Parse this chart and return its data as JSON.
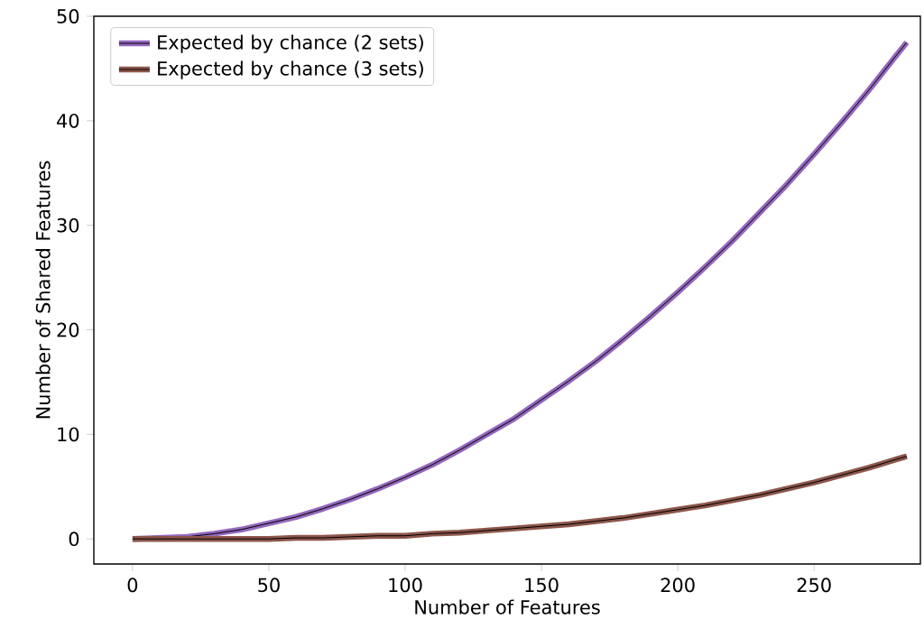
{
  "chart_data": {
    "type": "line",
    "xlabel": "Number of Features",
    "ylabel": "Number of Shared Features",
    "xlim": [
      -14.2,
      289
    ],
    "ylim": [
      -2.4,
      50
    ],
    "xticks": [
      0,
      50,
      100,
      150,
      200,
      250
    ],
    "yticks": [
      0,
      10,
      20,
      30,
      40,
      50
    ],
    "grid": false,
    "legend": "top left",
    "marker": "none",
    "line_style": "solid",
    "series": [
      {
        "name": "Expected by chance (2 sets)",
        "color": "#9467bd",
        "x": [
          0,
          10,
          20,
          30,
          40,
          50,
          60,
          70,
          80,
          90,
          100,
          110,
          120,
          130,
          140,
          150,
          160,
          170,
          180,
          190,
          200,
          210,
          220,
          230,
          240,
          250,
          260,
          270,
          280,
          284
        ],
        "values": [
          0,
          0.1,
          0.2,
          0.5,
          0.9,
          1.5,
          2.1,
          2.9,
          3.8,
          4.8,
          5.9,
          7.1,
          8.5,
          10.0,
          11.5,
          13.3,
          15.1,
          17.0,
          19.1,
          21.3,
          23.6,
          26.0,
          28.5,
          31.2,
          33.9,
          36.8,
          39.8,
          42.9,
          46.2,
          47.5
        ]
      },
      {
        "name": "Expected by chance (3 sets)",
        "color": "#8c564b",
        "x": [
          0,
          10,
          20,
          30,
          40,
          50,
          60,
          70,
          80,
          90,
          100,
          110,
          120,
          130,
          140,
          150,
          160,
          170,
          180,
          190,
          200,
          210,
          220,
          230,
          240,
          250,
          260,
          270,
          280,
          284
        ],
        "values": [
          0,
          0,
          0,
          0,
          0,
          0,
          0.1,
          0.1,
          0.2,
          0.3,
          0.3,
          0.5,
          0.6,
          0.8,
          1.0,
          1.2,
          1.4,
          1.7,
          2.0,
          2.4,
          2.8,
          3.2,
          3.7,
          4.2,
          4.8,
          5.4,
          6.1,
          6.8,
          7.6,
          7.9
        ]
      }
    ]
  }
}
